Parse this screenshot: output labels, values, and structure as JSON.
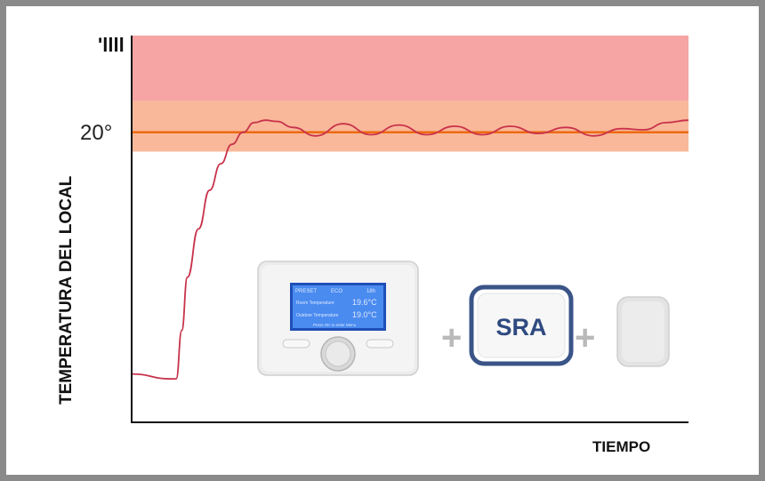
{
  "chart_data": {
    "type": "line",
    "title": "",
    "ylabel": "TEMPERATURA DEL LOCAL",
    "xlabel": "TIEMPO",
    "top_mark": "'llll",
    "ytick_label": "20°",
    "setpoint": 20,
    "ylim": [
      8,
      24
    ],
    "xlim": [
      0,
      100
    ],
    "bands": [
      {
        "from": 21.3,
        "to": 24,
        "color": "#f6a4a4"
      },
      {
        "from": 19.2,
        "to": 21.3,
        "color": "#f9b89a"
      }
    ],
    "setpoint_color": "#ee6a10",
    "series": [
      {
        "color": "#c8324a",
        "x": [
          0,
          7,
          8,
          9,
          10,
          12,
          14,
          16,
          18,
          20,
          22,
          24,
          26,
          29,
          33,
          38,
          43,
          48,
          53,
          58,
          63,
          68,
          73,
          78,
          83,
          88,
          92,
          96,
          100
        ],
        "y": [
          10.0,
          9.8,
          9.8,
          11.8,
          14.0,
          16.0,
          17.6,
          18.7,
          19.5,
          20.0,
          20.4,
          20.5,
          20.45,
          20.2,
          19.85,
          20.35,
          19.9,
          20.3,
          19.9,
          20.25,
          19.9,
          20.25,
          19.95,
          20.2,
          19.85,
          20.15,
          20.1,
          20.4,
          20.5
        ]
      }
    ]
  },
  "devices": {
    "thermostat": {
      "lcd": {
        "row1_left": "PRESET",
        "row1_mid": "ECO",
        "row1_right": "18h",
        "row2_label": "Room Temperature",
        "row2_value": "19.6°C",
        "row3_label": "Outdoor Temperature",
        "row3_value": "19.0°C",
        "row4": "Press OK to enter Menu"
      }
    },
    "plus_1": "+",
    "sra_label": "SRA",
    "plus_2": "+"
  },
  "colors": {
    "frame": "#8a8a8a",
    "axis": "#111111",
    "sra_border": "#3a5488",
    "lcd_bg": "#3f7ee8"
  }
}
